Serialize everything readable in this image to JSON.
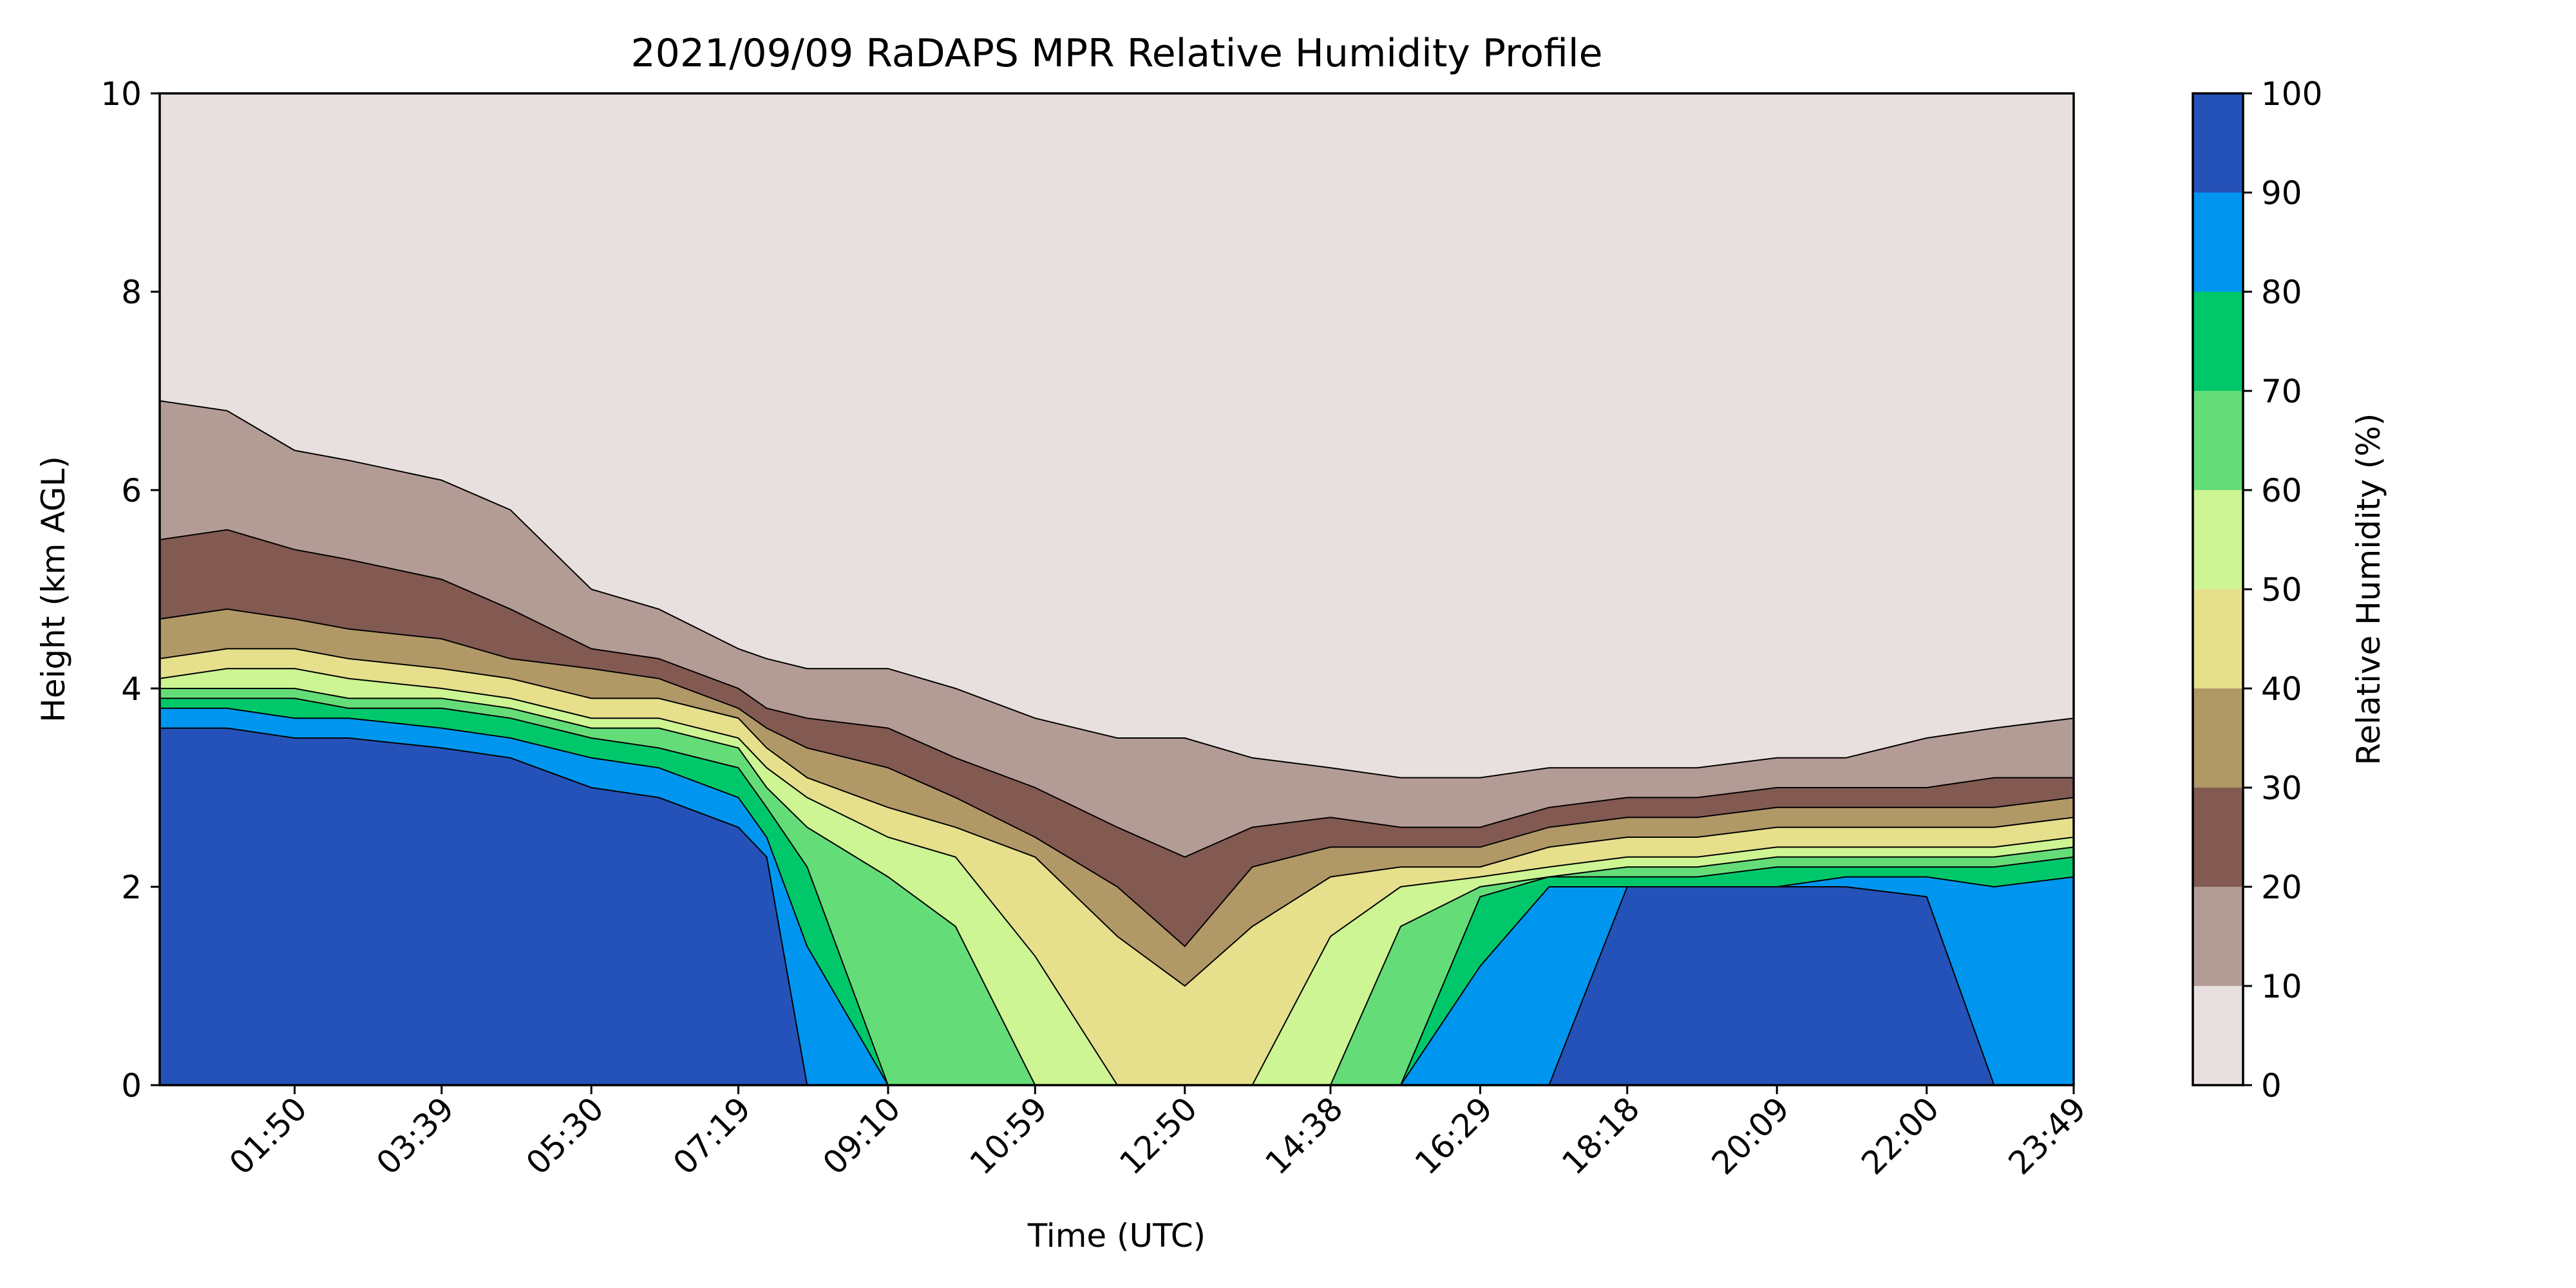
{
  "chart_data": {
    "type": "filled-contour",
    "title": "2021/09/09 RaDAPS MPR Relative Humidity Profile",
    "xlabel": "Time (UTC)",
    "ylabel": "Height (km AGL)",
    "x_range": [
      "00:10",
      "23:49"
    ],
    "ylim": [
      0,
      10
    ],
    "x_ticks": [
      "01:50",
      "03:39",
      "05:30",
      "07:19",
      "09:10",
      "10:59",
      "12:50",
      "14:38",
      "16:29",
      "18:18",
      "20:09",
      "22:00",
      "23:49"
    ],
    "y_ticks": [
      0,
      2,
      4,
      6,
      8,
      10
    ],
    "grid": false,
    "colorbar": {
      "label": "Relative Humidity (%)",
      "ticks": [
        0,
        10,
        20,
        30,
        40,
        50,
        60,
        70,
        80,
        90,
        100
      ],
      "levels": [
        {
          "range": [
            0,
            10
          ],
          "color": "#e8e0df"
        },
        {
          "range": [
            10,
            20
          ],
          "color": "#b49c96"
        },
        {
          "range": [
            20,
            30
          ],
          "color": "#825a52"
        },
        {
          "range": [
            30,
            40
          ],
          "color": "#b19867"
        },
        {
          "range": [
            40,
            50
          ],
          "color": "#e6e08c"
        },
        {
          "range": [
            50,
            60
          ],
          "color": "#cdf593"
        },
        {
          "range": [
            60,
            70
          ],
          "color": "#64dd78"
        },
        {
          "range": [
            70,
            80
          ],
          "color": "#00c86a"
        },
        {
          "range": [
            80,
            90
          ],
          "color": "#0096f0"
        },
        {
          "range": [
            90,
            100
          ],
          "color": "#2552b8"
        }
      ]
    },
    "contour_top_heights_km": {
      "times": [
        "00:10",
        "01:00",
        "01:50",
        "02:30",
        "03:39",
        "04:30",
        "05:30",
        "06:20",
        "07:19",
        "07:40",
        "08:10",
        "09:10",
        "10:00",
        "10:59",
        "12:00",
        "12:50",
        "13:40",
        "14:38",
        "15:30",
        "16:29",
        "17:20",
        "18:18",
        "19:10",
        "20:09",
        "21:00",
        "22:00",
        "22:50",
        "23:49"
      ],
      "rh_10": [
        6.9,
        6.8,
        6.4,
        6.3,
        6.1,
        5.8,
        5.0,
        4.8,
        4.4,
        4.3,
        4.2,
        4.2,
        4.0,
        3.7,
        3.5,
        3.5,
        3.3,
        3.2,
        3.1,
        3.1,
        3.2,
        3.2,
        3.2,
        3.3,
        3.3,
        3.5,
        3.6,
        3.7
      ],
      "rh_20": [
        5.5,
        5.6,
        5.4,
        5.3,
        5.1,
        4.8,
        4.4,
        4.3,
        4.0,
        3.8,
        3.7,
        3.6,
        3.3,
        3.0,
        2.6,
        2.3,
        2.6,
        2.7,
        2.6,
        2.6,
        2.8,
        2.9,
        2.9,
        3.0,
        3.0,
        3.0,
        3.1,
        3.1
      ],
      "rh_30": [
        4.7,
        4.8,
        4.7,
        4.6,
        4.5,
        4.3,
        4.2,
        4.1,
        3.8,
        3.6,
        3.4,
        3.2,
        2.9,
        2.5,
        2.0,
        1.4,
        2.2,
        2.4,
        2.4,
        2.4,
        2.6,
        2.7,
        2.7,
        2.8,
        2.8,
        2.8,
        2.8,
        2.9
      ],
      "rh_40": [
        4.3,
        4.4,
        4.4,
        4.3,
        4.2,
        4.1,
        3.9,
        3.9,
        3.7,
        3.4,
        3.1,
        2.8,
        2.6,
        2.3,
        1.5,
        1.0,
        1.6,
        2.1,
        2.2,
        2.2,
        2.4,
        2.5,
        2.5,
        2.6,
        2.6,
        2.6,
        2.6,
        2.7
      ],
      "rh_50": [
        4.1,
        4.2,
        4.2,
        4.1,
        4.0,
        3.9,
        3.7,
        3.7,
        3.5,
        3.2,
        2.9,
        2.5,
        2.3,
        1.3,
        0.0,
        0.0,
        0.0,
        1.5,
        2.0,
        2.1,
        2.2,
        2.3,
        2.3,
        2.4,
        2.4,
        2.4,
        2.4,
        2.5
      ],
      "rh_60": [
        4.0,
        4.0,
        4.0,
        3.9,
        3.9,
        3.8,
        3.6,
        3.6,
        3.4,
        3.0,
        2.6,
        2.1,
        1.6,
        0.0,
        0.0,
        0.0,
        0.0,
        0.0,
        1.6,
        2.0,
        2.1,
        2.2,
        2.2,
        2.3,
        2.3,
        2.3,
        2.3,
        2.4
      ],
      "rh_70": [
        3.9,
        3.9,
        3.9,
        3.8,
        3.8,
        3.7,
        3.5,
        3.4,
        3.2,
        2.8,
        2.2,
        0.0,
        0.0,
        0.0,
        0.0,
        0.0,
        0.0,
        0.0,
        0.0,
        1.9,
        2.1,
        2.1,
        2.1,
        2.2,
        2.2,
        2.2,
        2.2,
        2.3
      ],
      "rh_80": [
        3.8,
        3.8,
        3.7,
        3.7,
        3.6,
        3.5,
        3.3,
        3.2,
        2.9,
        2.5,
        1.4,
        0.0,
        0.0,
        0.0,
        0.0,
        0.0,
        0.0,
        0.0,
        0.0,
        1.2,
        2.0,
        2.0,
        2.0,
        2.0,
        2.1,
        2.1,
        2.0,
        2.1
      ],
      "rh_90": [
        3.6,
        3.6,
        3.5,
        3.5,
        3.4,
        3.3,
        3.0,
        2.9,
        2.6,
        2.3,
        0.0,
        0.0,
        0.0,
        0.0,
        0.0,
        0.0,
        0.0,
        0.0,
        0.0,
        0.0,
        0.0,
        2.0,
        2.0,
        2.0,
        2.0,
        1.9,
        0.0,
        0.0
      ]
    }
  }
}
